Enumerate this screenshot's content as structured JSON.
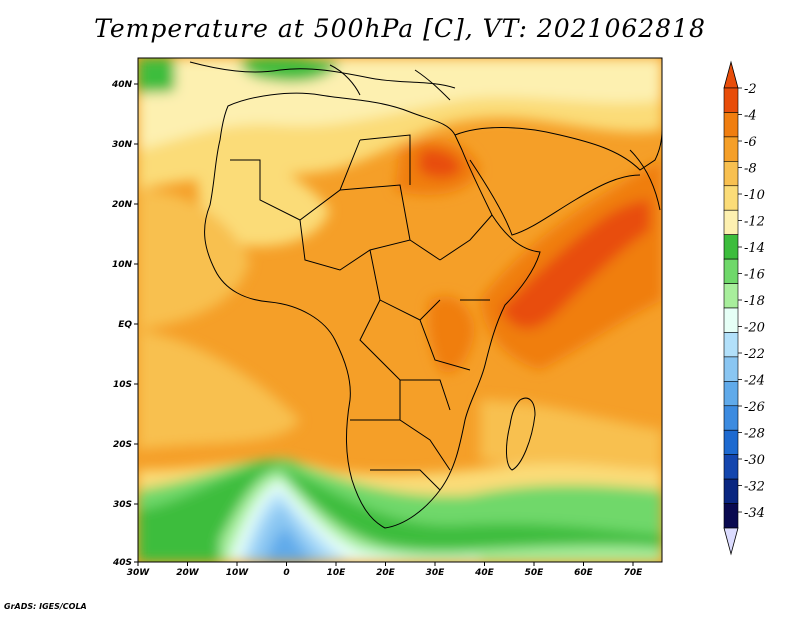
{
  "title": "Temperature at 500hPa [C], VT: 2021062818",
  "credit": "GrADS: IGES/COLA",
  "map": {
    "lon_ticks": [
      "30W",
      "20W",
      "10W",
      "0",
      "10E",
      "20E",
      "30E",
      "40E",
      "50E",
      "60E",
      "70E"
    ],
    "lat_ticks": [
      "40N",
      "30N",
      "20N",
      "10N",
      "EQ",
      "10S",
      "20S",
      "30S",
      "40S"
    ],
    "lon_range": [
      -30,
      75
    ],
    "lat_range": [
      -40,
      44
    ]
  },
  "colorbar": {
    "levels": [
      "-2",
      "-4",
      "-6",
      "-8",
      "-10",
      "-12",
      "-14",
      "-16",
      "-18",
      "-20",
      "-22",
      "-24",
      "-26",
      "-28",
      "-30",
      "-32",
      "-34"
    ],
    "colors": [
      "#e84d0a",
      "#f07e10",
      "#f59f28",
      "#f8c050",
      "#fbdc78",
      "#fdf0b0",
      "#3cbd3c",
      "#6fd86a",
      "#a8ee9c",
      "#e6fff6",
      "#b2e0fa",
      "#8ac6f2",
      "#60aaea",
      "#3c8be0",
      "#1e6ad0",
      "#1446ae",
      "#0a2680",
      "#0a0a50"
    ],
    "triangle_top": "#e84d0a",
    "triangle_bottom": "#dcdcff"
  }
}
